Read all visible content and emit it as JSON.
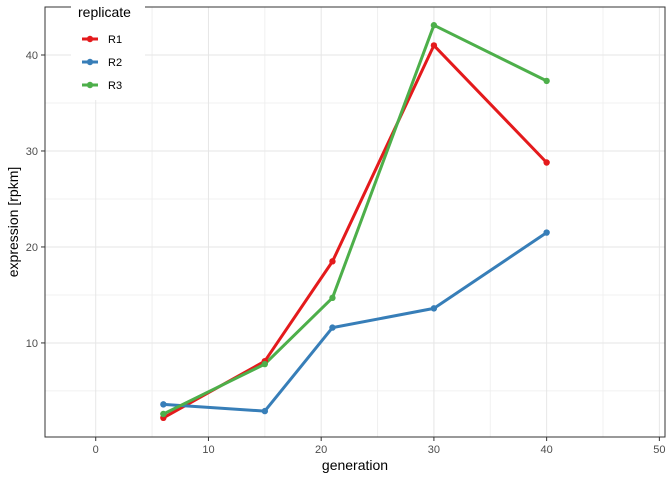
{
  "chart_data": {
    "type": "line",
    "xlabel": "generation",
    "ylabel": "expression [rpkm]",
    "xlim": [
      -4.5,
      50.5
    ],
    "ylim": [
      0.2,
      45.0
    ],
    "x_ticks": [
      0,
      10,
      20,
      30,
      40,
      50
    ],
    "y_ticks": [
      10,
      20,
      30,
      40
    ],
    "grid": true,
    "legend": {
      "title": "replicate",
      "position": "top-left"
    },
    "x": [
      6,
      15,
      21,
      30,
      40
    ],
    "series": [
      {
        "name": "R1",
        "color": "#e41a1c",
        "values": [
          2.2,
          8.1,
          18.5,
          41.0,
          28.8
        ]
      },
      {
        "name": "R2",
        "color": "#377eb8",
        "values": [
          3.6,
          2.9,
          11.6,
          13.6,
          21.5
        ]
      },
      {
        "name": "R3",
        "color": "#4daf4a",
        "values": [
          2.6,
          7.8,
          14.7,
          43.1,
          37.3
        ]
      }
    ]
  }
}
